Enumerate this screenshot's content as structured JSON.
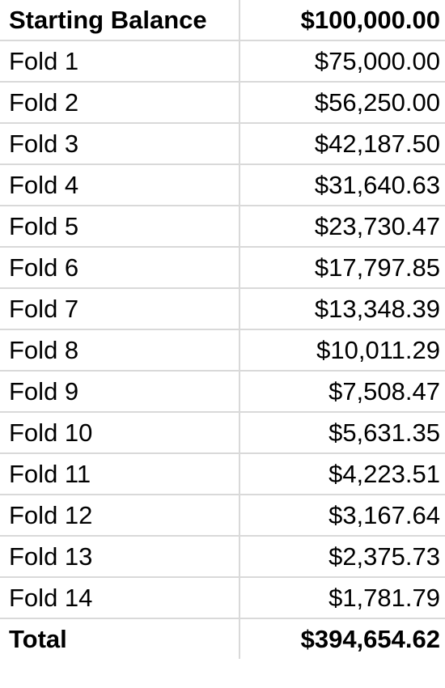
{
  "header": {
    "label": "Starting Balance",
    "value": "$100,000.00"
  },
  "rows": [
    {
      "label": "Fold 1",
      "value": "$75,000.00"
    },
    {
      "label": "Fold 2",
      "value": "$56,250.00"
    },
    {
      "label": "Fold 3",
      "value": "$42,187.50"
    },
    {
      "label": "Fold 4",
      "value": "$31,640.63"
    },
    {
      "label": "Fold 5",
      "value": "$23,730.47"
    },
    {
      "label": "Fold 6",
      "value": "$17,797.85"
    },
    {
      "label": "Fold 7",
      "value": "$13,348.39"
    },
    {
      "label": "Fold 8",
      "value": "$10,011.29"
    },
    {
      "label": "Fold 9",
      "value": "$7,508.47"
    },
    {
      "label": "Fold 10",
      "value": "$5,631.35"
    },
    {
      "label": "Fold 11",
      "value": "$4,223.51"
    },
    {
      "label": "Fold 12",
      "value": "$3,167.64"
    },
    {
      "label": "Fold 13",
      "value": "$2,375.73"
    },
    {
      "label": "Fold 14",
      "value": "$1,781.79"
    }
  ],
  "total": {
    "label": "Total",
    "value": "$394,654.62"
  }
}
